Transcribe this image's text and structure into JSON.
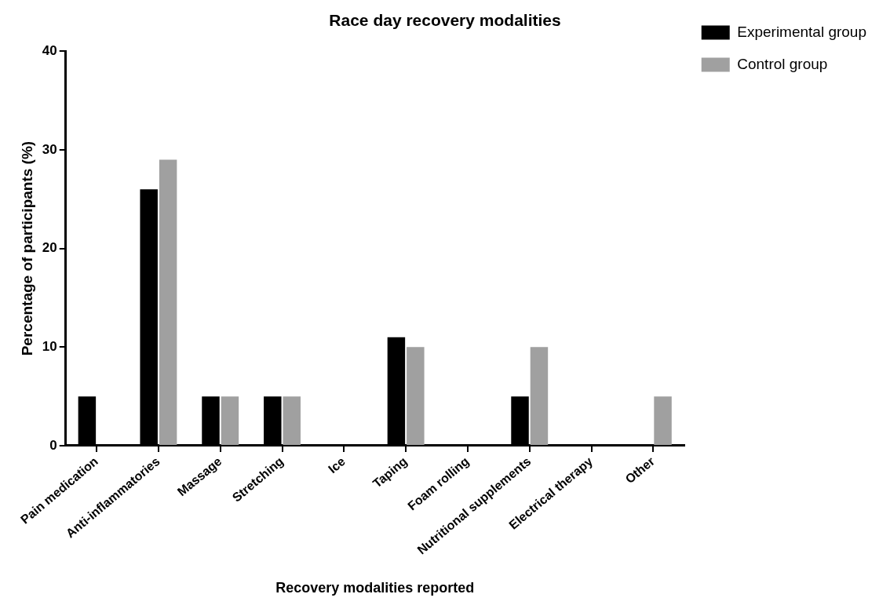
{
  "chart_data": {
    "type": "bar",
    "title": "Race day recovery modalities",
    "xlabel": "Recovery modalities reported",
    "ylabel": "Percentage of participants (%)",
    "categories": [
      "Pain medication",
      "Anti-inflammatories",
      "Massage",
      "Stretching",
      "Ice",
      "Taping",
      "Foam rolling",
      "Nutritional supplements",
      "Electrical therapy",
      "Other"
    ],
    "series": [
      {
        "name": "Experimental group",
        "color": "#000000",
        "values": [
          5,
          26,
          5,
          5,
          0,
          11,
          0,
          5,
          0,
          0
        ]
      },
      {
        "name": "Control group",
        "color": "#a0a0a0",
        "values": [
          0,
          29,
          5,
          5,
          0,
          10,
          0,
          10,
          0,
          5
        ]
      }
    ],
    "ylim": [
      0,
      40
    ],
    "yticks": [
      0,
      10,
      20,
      30,
      40
    ],
    "grid": false,
    "legend": "top right"
  }
}
